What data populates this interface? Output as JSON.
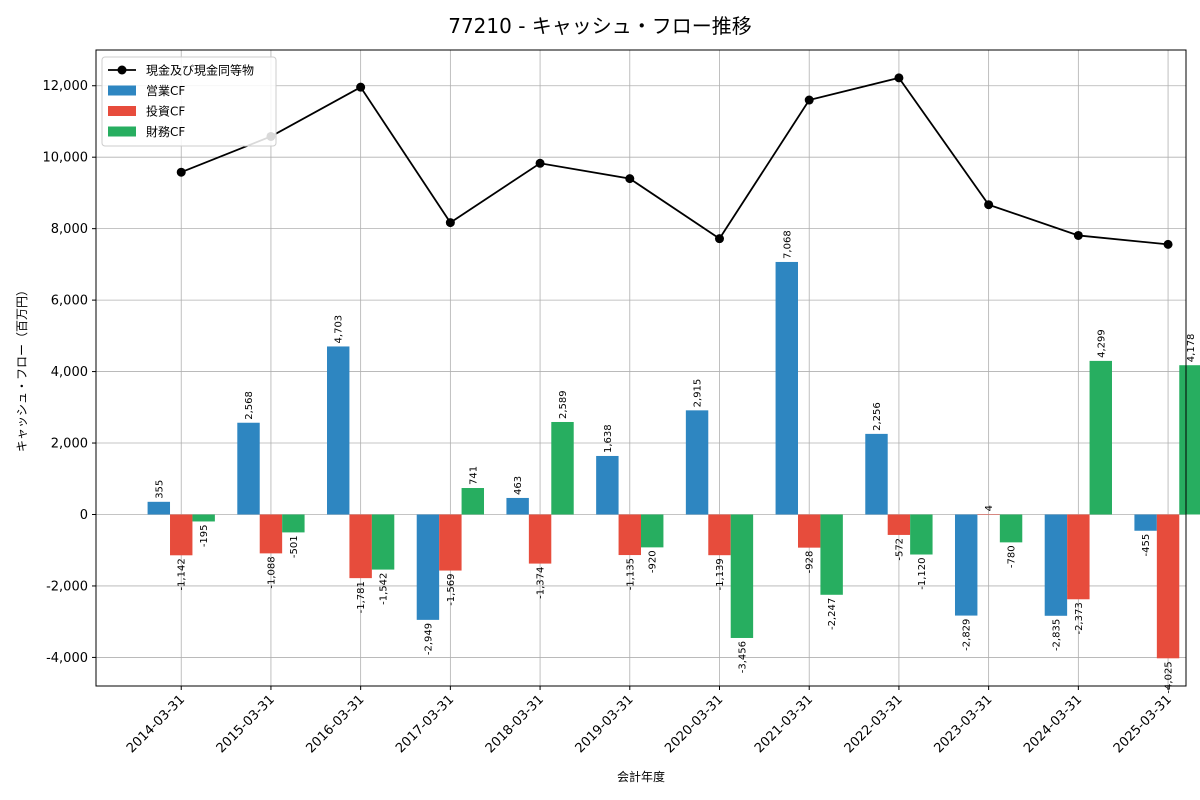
{
  "chart_data": {
    "type": "bar",
    "title": "77210 - キャッシュ・フロー推移",
    "xlabel": "会計年度",
    "ylabel": "キャッシュ・フロー（百万円）",
    "ylim": [
      -4800,
      13000
    ],
    "yticks": [
      -4000,
      -2000,
      0,
      2000,
      4000,
      6000,
      8000,
      10000,
      12000
    ],
    "ytick_labels": [
      "-4,000",
      "-2,000",
      "0",
      "2,000",
      "4,000",
      "6,000",
      "8,000",
      "10,000",
      "12,000"
    ],
    "grid": true,
    "legend_position": "top-left",
    "categories": [
      "2014-03-31",
      "2015-03-31",
      "2016-03-31",
      "2017-03-31",
      "2018-03-31",
      "2019-03-31",
      "2020-03-31",
      "2021-03-31",
      "2022-03-31",
      "2023-03-31",
      "2024-03-31",
      "2025-03-31"
    ],
    "series": [
      {
        "name": "営業CF",
        "kind": "bar",
        "color": "#2e86c1",
        "values": [
          355,
          2568,
          4703,
          -2949,
          463,
          1638,
          2915,
          7068,
          2256,
          -2829,
          -2835,
          -455
        ],
        "labels": [
          "355",
          "2,568",
          "4,703",
          "-2,949",
          "463",
          "1,638",
          "2,915",
          "7,068",
          "2,256",
          "-2,829",
          "-2,835",
          "-455"
        ]
      },
      {
        "name": "投資CF",
        "kind": "bar",
        "color": "#e74c3c",
        "values": [
          -1142,
          -1088,
          -1781,
          -1569,
          -1374,
          -1135,
          -1139,
          -928,
          -572,
          4,
          -2373,
          -4025
        ],
        "labels": [
          "-1,142",
          "-1,088",
          "-1,781",
          "-1,569",
          "-1,374",
          "-1,135",
          "-1,139",
          "-928",
          "-572",
          "4",
          "-2,373",
          "-4,025"
        ]
      },
      {
        "name": "財務CF",
        "kind": "bar",
        "color": "#27ae60",
        "values": [
          -195,
          -501,
          -1542,
          741,
          2589,
          -920,
          -3456,
          -2247,
          -1120,
          -780,
          4299,
          4178
        ],
        "labels": [
          "-195",
          "-501",
          "-1,542",
          "741",
          "2,589",
          "-920",
          "-3,456",
          "-2,247",
          "-1,120",
          "-780",
          "4,299",
          "4,178"
        ]
      },
      {
        "name": "現金及び現金同等物",
        "kind": "line",
        "color": "#000000",
        "values": [
          9580,
          10580,
          11960,
          8170,
          9830,
          9400,
          7720,
          11600,
          12220,
          8670,
          7810,
          7560
        ]
      }
    ]
  }
}
